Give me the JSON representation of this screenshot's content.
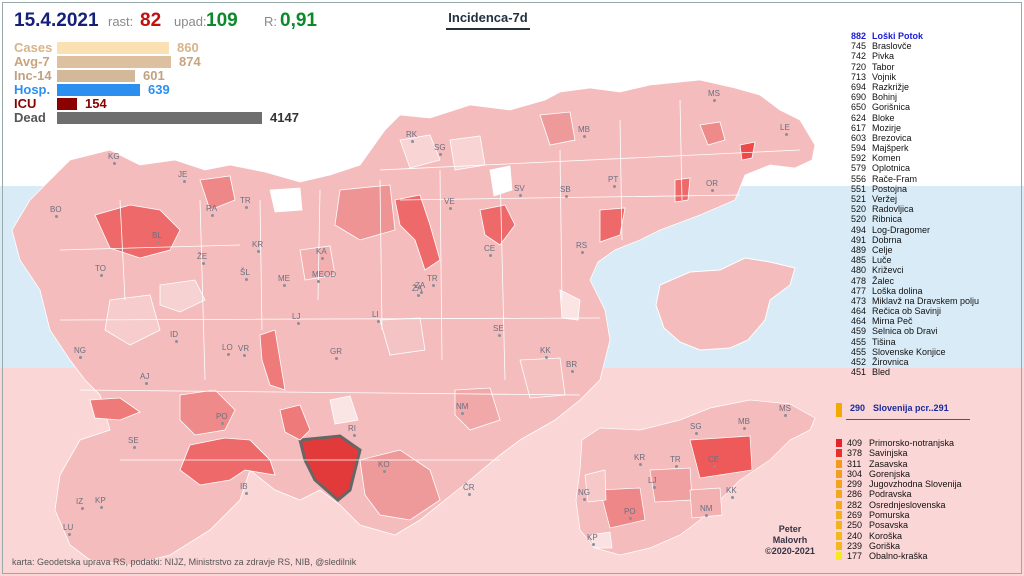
{
  "header": {
    "date": "15.4.2021",
    "rast_label": "rast:",
    "rast_value": "82",
    "upad_label": "upad:",
    "upad_value": "109",
    "r_label": "R:",
    "r_value": "0,91",
    "title": "Incidenca-7d"
  },
  "bars": [
    {
      "label": "Cases",
      "value": "860",
      "color": "#fbe0b4",
      "label_color": "#d8b48a"
    },
    {
      "label": "Avg-7",
      "value": "874",
      "color": "#dcc0a0",
      "label_color": "#c8a47e"
    },
    {
      "label": "Inc-14",
      "value": "601",
      "color": "#d4b89a",
      "label_color": "#c0a282"
    },
    {
      "label": "Hosp.",
      "value": "639",
      "color": "#2b8ff0",
      "label_color": "#2b8ff0"
    },
    {
      "label": "ICU",
      "value": "154",
      "color": "#8b0000",
      "label_color": "#8b0000"
    },
    {
      "label": "Dead",
      "value": "4147",
      "color": "#6e6e6e",
      "label_color": "#555555"
    }
  ],
  "map_labels": [
    "KG",
    "JE",
    "RA",
    "TR",
    "BO",
    "BL",
    "KR",
    "ŽE",
    "ŠL",
    "TO",
    "KA",
    "ME",
    "MEOD",
    "LJ",
    "ID",
    "NG",
    "AJ",
    "LO",
    "VR",
    "GR",
    "PO",
    "SE",
    "IB",
    "RI",
    "KO",
    "KP",
    "IZ",
    "LU",
    "ČR",
    "NM",
    "SE",
    "KK",
    "BR",
    "LI",
    "ZA",
    "TR",
    "CE",
    "RS",
    "VE",
    "SG",
    "RK",
    "MB",
    "MS",
    "LE",
    "PT",
    "OR",
    "SB",
    "SV",
    "ŽA"
  ],
  "ranking": [
    {
      "value": "882",
      "name": "Loški Potok"
    },
    {
      "value": "745",
      "name": "Braslovče"
    },
    {
      "value": "742",
      "name": "Pivka"
    },
    {
      "value": "720",
      "name": "Tabor"
    },
    {
      "value": "713",
      "name": "Vojnik"
    },
    {
      "value": "694",
      "name": "Razkrižje"
    },
    {
      "value": "690",
      "name": "Bohinj"
    },
    {
      "value": "650",
      "name": "Gorišnica"
    },
    {
      "value": "624",
      "name": "Bloke"
    },
    {
      "value": "617",
      "name": "Mozirje"
    },
    {
      "value": "603",
      "name": "Brezovica"
    },
    {
      "value": "594",
      "name": "Majšperk"
    },
    {
      "value": "592",
      "name": "Komen"
    },
    {
      "value": "579",
      "name": "Oplotnica"
    },
    {
      "value": "556",
      "name": "Rače-Fram"
    },
    {
      "value": "551",
      "name": "Postojna"
    },
    {
      "value": "521",
      "name": "Veržej"
    },
    {
      "value": "520",
      "name": "Radovljica"
    },
    {
      "value": "520",
      "name": "Ribnica"
    },
    {
      "value": "494",
      "name": "Log-Dragomer"
    },
    {
      "value": "491",
      "name": "Dobrna"
    },
    {
      "value": "489",
      "name": "Celje"
    },
    {
      "value": "485",
      "name": "Luče"
    },
    {
      "value": "480",
      "name": "Križevci"
    },
    {
      "value": "478",
      "name": "Žalec"
    },
    {
      "value": "477",
      "name": "Loška dolina"
    },
    {
      "value": "473",
      "name": "Miklavž na Dravskem polju"
    },
    {
      "value": "464",
      "name": "Rečica ob Savinji"
    },
    {
      "value": "464",
      "name": "Mirna Peč"
    },
    {
      "value": "459",
      "name": "Selnica ob Dravi"
    },
    {
      "value": "455",
      "name": "Tišina"
    },
    {
      "value": "455",
      "name": "Slovenske Konjice"
    },
    {
      "value": "452",
      "name": "Žirovnica"
    },
    {
      "value": "451",
      "name": "Bled"
    }
  ],
  "slovenia": {
    "value": "290",
    "label": "Slovenija  pcr..291"
  },
  "regions": [
    {
      "value": "409",
      "name": "Primorsko-notranjska",
      "color": "#e8212a"
    },
    {
      "value": "378",
      "name": "Savinjska",
      "color": "#e8312a"
    },
    {
      "value": "311",
      "name": "Zasavska",
      "color": "#f29a1e"
    },
    {
      "value": "304",
      "name": "Gorenjska",
      "color": "#f29e1e"
    },
    {
      "value": "299",
      "name": "Jugovzhodna Slovenija",
      "color": "#f2a41e"
    },
    {
      "value": "286",
      "name": "Podravska",
      "color": "#f2a81e"
    },
    {
      "value": "282",
      "name": "Osrednjeslovenska",
      "color": "#f2aa1e"
    },
    {
      "value": "269",
      "name": "Pomurska",
      "color": "#f2b01e"
    },
    {
      "value": "250",
      "name": "Posavska",
      "color": "#f2b41e"
    },
    {
      "value": "240",
      "name": "Koroška",
      "color": "#f2b81e"
    },
    {
      "value": "239",
      "name": "Goriška",
      "color": "#f2b81e"
    },
    {
      "value": "177",
      "name": "Obalno-kraška",
      "color": "#f8e81e"
    }
  ],
  "small_map_labels": [
    "SG",
    "MB",
    "MS",
    "KR",
    "LJ",
    "TR",
    "CE",
    "NG",
    "KK",
    "PO",
    "NM",
    "KP"
  ],
  "credit": "karta: Geodetska uprava RS, podatki: NIJZ, Ministrstvo za zdravje RS, NIB, @sledilnik",
  "author": {
    "line1": "Peter",
    "line2": "Malovrh",
    "line3": "©2020-2021"
  },
  "colors": {
    "navy": "#16207a",
    "red_stat": "#c01010",
    "green_stat": "#0a8a2a",
    "map_base": "#f2b8b8"
  }
}
